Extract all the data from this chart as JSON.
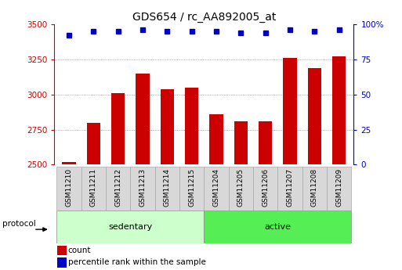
{
  "title": "GDS654 / rc_AA892005_at",
  "samples": [
    "GSM11210",
    "GSM11211",
    "GSM11212",
    "GSM11213",
    "GSM11214",
    "GSM11215",
    "GSM11204",
    "GSM11205",
    "GSM11206",
    "GSM11207",
    "GSM11208",
    "GSM11209"
  ],
  "counts": [
    2520,
    2800,
    3010,
    3150,
    3040,
    3050,
    2860,
    2810,
    2810,
    3260,
    3190,
    3270
  ],
  "percentile_ranks": [
    92,
    95,
    95,
    96,
    95,
    95,
    95,
    94,
    94,
    96,
    95,
    96
  ],
  "ylim_left": [
    2500,
    3500
  ],
  "ylim_right": [
    0,
    100
  ],
  "yticks_left": [
    2500,
    2750,
    3000,
    3250,
    3500
  ],
  "yticks_right": [
    0,
    25,
    50,
    75,
    100
  ],
  "ytick_right_labels": [
    "0",
    "25",
    "50",
    "75",
    "100%"
  ],
  "bar_color": "#cc0000",
  "dot_color": "#0000cc",
  "groups": [
    {
      "label": "sedentary",
      "start": 0,
      "end": 6,
      "color": "#ccffcc"
    },
    {
      "label": "active",
      "start": 6,
      "end": 12,
      "color": "#55ee55"
    }
  ],
  "protocol_label": "protocol",
  "legend_count_label": "count",
  "legend_pct_label": "percentile rank within the sample",
  "bar_color_legend": "#cc0000",
  "dot_color_legend": "#0000cc",
  "grid_color": "#888888",
  "title_fontsize": 10,
  "tick_fontsize": 7.5,
  "sample_label_fontsize": 6.5,
  "group_label_fontsize": 8,
  "legend_fontsize": 7.5
}
